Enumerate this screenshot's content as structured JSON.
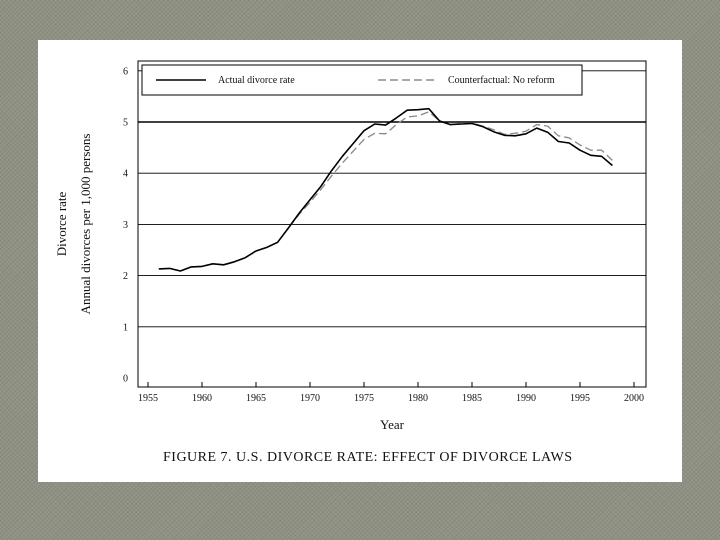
{
  "slide": {
    "background": "#8f9183",
    "panel": "#ffffff"
  },
  "chart_data": {
    "type": "line",
    "title": "",
    "caption": "FIGURE 7. U.S. DIVORCE RATE: EFFECT OF DIVORCE LAWS",
    "xlabel": "Year",
    "ylabel_line1": "Divorce rate",
    "ylabel_line2": "Annual divorces per 1,000 persons",
    "xlim": [
      1955,
      2000
    ],
    "ylim": [
      0,
      6.3
    ],
    "x_ticks": [
      1955,
      1960,
      1965,
      1970,
      1975,
      1980,
      1985,
      1990,
      1995,
      2000
    ],
    "y_ticks": [
      0,
      1,
      2,
      3,
      4,
      5,
      6
    ],
    "grid": "horizontal",
    "legend_position": "top",
    "x": [
      1956,
      1957,
      1958,
      1959,
      1960,
      1961,
      1962,
      1963,
      1964,
      1965,
      1966,
      1967,
      1968,
      1969,
      1970,
      1971,
      1972,
      1973,
      1974,
      1975,
      1976,
      1977,
      1978,
      1979,
      1980,
      1981,
      1982,
      1983,
      1984,
      1985,
      1986,
      1987,
      1988,
      1989,
      1990,
      1991,
      1992,
      1993,
      1994,
      1995,
      1996,
      1997,
      1998
    ],
    "series": [
      {
        "name": "Actual divorce rate",
        "style": "solid",
        "color": "#000000",
        "values": [
          2.13,
          2.14,
          2.09,
          2.17,
          2.18,
          2.23,
          2.21,
          2.27,
          2.35,
          2.48,
          2.55,
          2.65,
          2.93,
          3.22,
          3.48,
          3.74,
          4.05,
          4.33,
          4.58,
          4.83,
          4.96,
          4.94,
          5.08,
          5.23,
          5.24,
          5.26,
          5.02,
          4.95,
          4.96,
          4.97,
          4.91,
          4.81,
          4.74,
          4.73,
          4.77,
          4.88,
          4.8,
          4.62,
          4.59,
          4.45,
          4.35,
          4.33,
          4.15
        ]
      },
      {
        "name": "Counterfactual: No reform",
        "style": "dashed",
        "color": "#888888",
        "values": [
          2.13,
          2.14,
          2.09,
          2.17,
          2.18,
          2.23,
          2.21,
          2.27,
          2.35,
          2.48,
          2.55,
          2.65,
          2.93,
          3.2,
          3.43,
          3.68,
          3.95,
          4.2,
          4.43,
          4.66,
          4.78,
          4.77,
          4.95,
          5.1,
          5.12,
          5.2,
          5.02,
          4.95,
          4.97,
          4.98,
          4.92,
          4.85,
          4.76,
          4.78,
          4.82,
          4.95,
          4.92,
          4.73,
          4.69,
          4.55,
          4.45,
          4.45,
          4.25
        ]
      }
    ],
    "reference_line": {
      "y": 5
    }
  }
}
